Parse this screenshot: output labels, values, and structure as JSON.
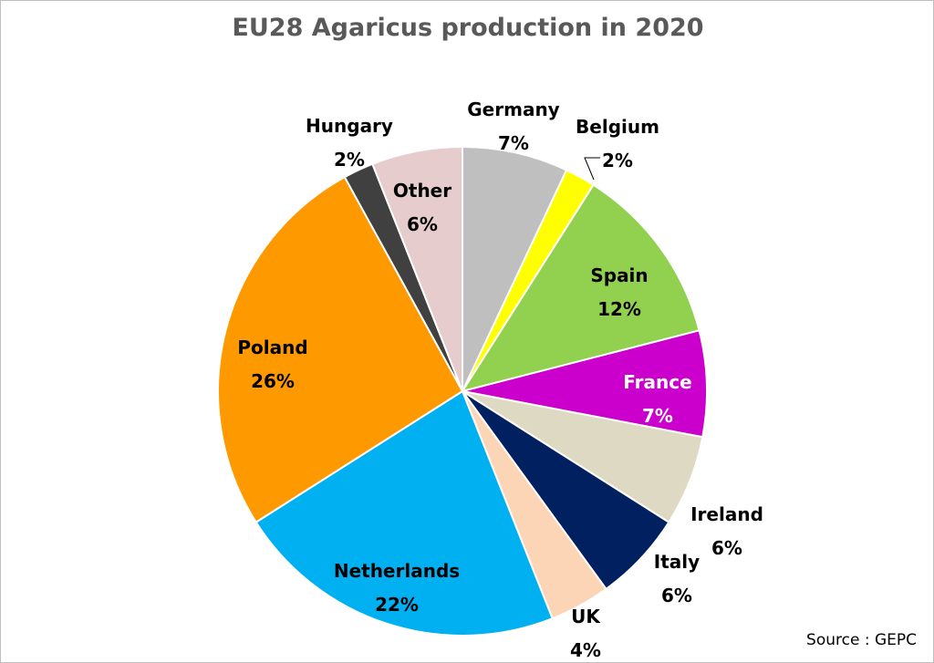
{
  "chart_data": {
    "type": "pie",
    "title": "EU28 Agaricus production in 2020",
    "source": "Source : GEPC",
    "categories": [
      "Germany",
      "Belgium",
      "Spain",
      "France",
      "Ireland",
      "Italy",
      "UK",
      "Netherlands",
      "Poland",
      "Hungary",
      "Other"
    ],
    "values": [
      7,
      2,
      12,
      7,
      6,
      6,
      4,
      22,
      26,
      2,
      6
    ],
    "value_labels": [
      "7%",
      "2%",
      "12%",
      "7%",
      "6%",
      "6%",
      "4%",
      "22%",
      "26%",
      "2%",
      "6%"
    ],
    "colors": [
      "#bfbfbf",
      "#ffff00",
      "#92d050",
      "#cc00cc",
      "#ddd9c3",
      "#002060",
      "#fbd5b5",
      "#00b0f0",
      "#ff9900",
      "#404040",
      "#e6cccc"
    ],
    "label_colors": [
      "#000000",
      "#000000",
      "#000000",
      "#ffffff",
      "#000000",
      "#000000",
      "#000000",
      "#000000",
      "#000000",
      "#000000",
      "#000000"
    ],
    "label_placement": [
      "outside",
      "outside",
      "inside",
      "inside",
      "outside",
      "outside",
      "outside",
      "inside",
      "inside",
      "outside",
      "inside"
    ],
    "start": "12 o'clock",
    "direction": "clockwise"
  }
}
